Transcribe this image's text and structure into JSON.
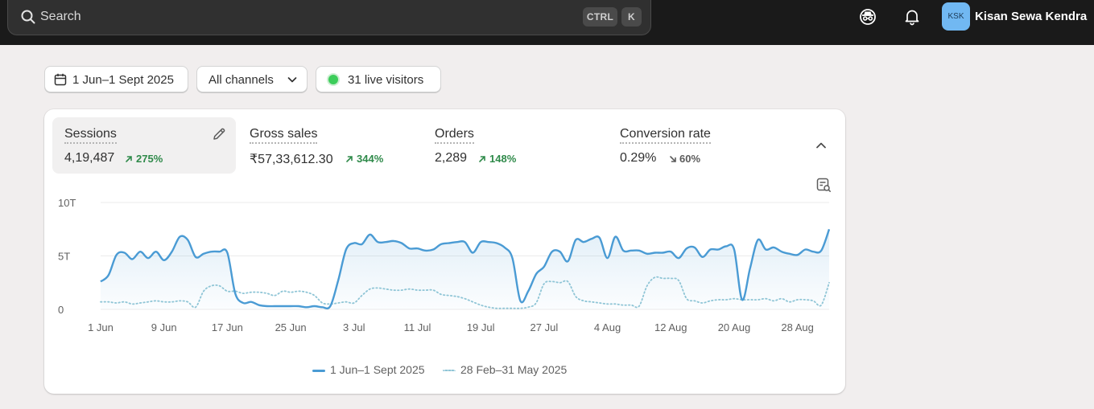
{
  "topbar": {
    "search_placeholder": "Search",
    "shortcut_keys": [
      "CTRL",
      "K"
    ],
    "avatar_initials": "KSK",
    "store_name": "Kisan Sewa Kendra"
  },
  "filters": {
    "date_range": "1 Jun–1 Sept 2025",
    "channels": "All channels",
    "live_visitors": "31 live visitors"
  },
  "metrics": [
    {
      "label": "Sessions",
      "value": "4,19,487",
      "change": "275%",
      "direction": "up"
    },
    {
      "label": "Gross sales",
      "value": "₹57,33,612.30",
      "change": "344%",
      "direction": "up"
    },
    {
      "label": "Orders",
      "value": "2,289",
      "change": "148%",
      "direction": "up"
    },
    {
      "label": "Conversion rate",
      "value": "0.29%",
      "change": "60%",
      "direction": "down"
    }
  ],
  "colors": {
    "accent": "#4a9bd4",
    "comparison": "#8fc5d6",
    "positive": "#2f8a4a",
    "live": "#3ccd5a"
  },
  "icons": [
    "search-icon",
    "incognito-icon",
    "bell-icon",
    "calendar-icon",
    "chevron-down-icon",
    "pencil-icon",
    "chevron-up-icon",
    "insight-icon",
    "arrow-up-right-icon",
    "arrow-down-right-icon"
  ],
  "chart_data": {
    "type": "line",
    "y_ticks": [
      "10T",
      "5T",
      "0"
    ],
    "ylim": [
      0,
      10000
    ],
    "x_ticks": [
      "1 Jun",
      "9 Jun",
      "17 Jun",
      "25 Jun",
      "3 Jul",
      "11 Jul",
      "19 Jul",
      "27 Jul",
      "4 Aug",
      "12 Aug",
      "20 Aug",
      "28 Aug"
    ],
    "grid": true,
    "legend_position": "bottom",
    "series": [
      {
        "name": "1 Jun–1 Sept 2025",
        "style": "solid",
        "x": [
          1,
          2,
          3,
          4,
          5,
          6,
          7,
          8,
          9,
          10,
          11,
          12,
          13,
          14,
          15,
          16,
          17,
          18,
          19,
          20,
          21,
          22,
          23,
          24,
          25,
          26,
          27,
          28,
          29,
          30,
          31,
          32,
          33,
          34,
          35,
          36,
          37,
          38,
          39,
          40,
          41,
          42,
          43,
          44,
          45,
          46,
          47,
          48,
          49,
          50,
          51,
          52,
          53,
          54,
          55,
          56,
          57,
          58,
          59,
          60,
          61,
          62,
          63,
          64,
          65,
          66,
          67,
          68,
          69,
          70,
          71,
          72,
          73,
          74,
          75,
          76,
          77,
          78,
          79,
          80,
          81,
          82,
          83,
          84,
          85,
          86,
          87,
          88,
          89,
          90,
          91,
          92,
          93
        ],
        "values": [
          2600,
          3200,
          5100,
          5300,
          4700,
          5400,
          4800,
          5400,
          4600,
          5400,
          6800,
          6500,
          4900,
          5200,
          5400,
          5400,
          5300,
          1500,
          600,
          700,
          400,
          300,
          300,
          300,
          300,
          300,
          200,
          300,
          200,
          300,
          2700,
          5600,
          6200,
          6100,
          7000,
          6300,
          6300,
          6400,
          6200,
          5700,
          5700,
          5500,
          5600,
          6100,
          6200,
          6300,
          6300,
          5300,
          6300,
          6300,
          6200,
          5800,
          4800,
          800,
          1700,
          3300,
          4000,
          5400,
          5400,
          4500,
          6500,
          6300,
          6600,
          6700,
          4800,
          6800,
          5500,
          5500,
          5500,
          5200,
          5300,
          5300,
          5400,
          4800,
          5700,
          5800,
          4900,
          5600,
          5600,
          5900,
          5600,
          900,
          3800,
          6500,
          5600,
          5800,
          5400,
          5200,
          5100,
          5600,
          5400,
          5500,
          7500
        ]
      },
      {
        "name": "28 Feb–31 May 2025",
        "style": "dotted",
        "x": [
          1,
          2,
          3,
          4,
          5,
          6,
          7,
          8,
          9,
          10,
          11,
          12,
          13,
          14,
          15,
          16,
          17,
          18,
          19,
          20,
          21,
          22,
          23,
          24,
          25,
          26,
          27,
          28,
          29,
          30,
          31,
          32,
          33,
          34,
          35,
          36,
          37,
          38,
          39,
          40,
          41,
          42,
          43,
          44,
          45,
          46,
          47,
          48,
          49,
          50,
          51,
          52,
          53,
          54,
          55,
          56,
          57,
          58,
          59,
          60,
          61,
          62,
          63,
          64,
          65,
          66,
          67,
          68,
          69,
          70,
          71,
          72,
          73,
          74,
          75,
          76,
          77,
          78,
          79,
          80,
          81,
          82,
          83,
          84,
          85,
          86,
          87,
          88,
          89,
          90,
          91,
          92,
          93
        ],
        "values": [
          700,
          700,
          600,
          700,
          500,
          600,
          700,
          800,
          700,
          700,
          800,
          700,
          200,
          1700,
          2200,
          2200,
          1700,
          1700,
          1500,
          1600,
          1600,
          1500,
          1300,
          1700,
          1600,
          1700,
          1600,
          1300,
          600,
          500,
          600,
          700,
          600,
          1300,
          1900,
          2000,
          1900,
          1800,
          1800,
          1900,
          1800,
          1800,
          1800,
          1400,
          1300,
          1200,
          1000,
          700,
          400,
          200,
          100,
          100,
          100,
          100,
          200,
          600,
          2400,
          2600,
          2500,
          2600,
          1200,
          800,
          700,
          600,
          500,
          500,
          400,
          400,
          300,
          2200,
          3000,
          2900,
          2900,
          2700,
          1000,
          800,
          600,
          800,
          900,
          900,
          1000,
          900,
          900,
          900,
          1000,
          800,
          1000,
          700,
          900,
          900,
          800,
          400,
          2500
        ]
      }
    ]
  }
}
